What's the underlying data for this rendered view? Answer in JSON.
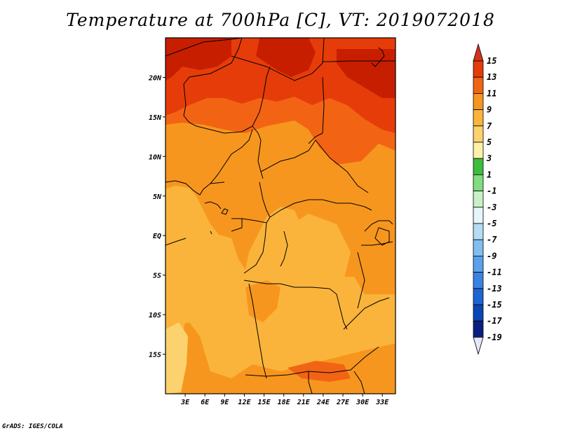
{
  "title": "Temperature at 700hPa [C], VT: 2019072018",
  "credit": "GrADS: IGES/COLA",
  "map": {
    "lon_range": [
      0,
      35
    ],
    "lat_range": [
      -20,
      25
    ],
    "lat_ticks": [
      {
        "lat": 20,
        "label": "20N"
      },
      {
        "lat": 15,
        "label": "15N"
      },
      {
        "lat": 10,
        "label": "10N"
      },
      {
        "lat": 5,
        "label": "5N"
      },
      {
        "lat": 0,
        "label": "EQ"
      },
      {
        "lat": -5,
        "label": "5S"
      },
      {
        "lat": -10,
        "label": "10S"
      },
      {
        "lat": -15,
        "label": "15S"
      }
    ],
    "lon_ticks": [
      {
        "lon": 3,
        "label": "3E"
      },
      {
        "lon": 6,
        "label": "6E"
      },
      {
        "lon": 9,
        "label": "9E"
      },
      {
        "lon": 12,
        "label": "12E"
      },
      {
        "lon": 15,
        "label": "15E"
      },
      {
        "lon": 18,
        "label": "18E"
      },
      {
        "lon": 21,
        "label": "21E"
      },
      {
        "lon": 24,
        "label": "24E"
      },
      {
        "lon": 27,
        "label": "27E"
      },
      {
        "lon": 30,
        "label": "30E"
      },
      {
        "lon": 33,
        "label": "33E"
      }
    ]
  },
  "colorbar": {
    "levels": [
      {
        "label": "15",
        "color": "#c81e00"
      },
      {
        "label": "13",
        "color": "#e63c0a"
      },
      {
        "label": "11",
        "color": "#f26414"
      },
      {
        "label": "9",
        "color": "#f7961e"
      },
      {
        "label": "7",
        "color": "#fab43c"
      },
      {
        "label": "5",
        "color": "#fcd26e"
      },
      {
        "label": "3",
        "color": "#fff0aa"
      },
      {
        "label": "1",
        "color": "#3cbe3c"
      },
      {
        "label": "-1",
        "color": "#82dc82"
      },
      {
        "label": "-3",
        "color": "#c8f0c8"
      },
      {
        "label": "-5",
        "color": "#e6f5fa"
      },
      {
        "label": "-7",
        "color": "#b4dcf5"
      },
      {
        "label": "-9",
        "color": "#82bef0"
      },
      {
        "label": "-11",
        "color": "#5aa0eb"
      },
      {
        "label": "-13",
        "color": "#3c82e1"
      },
      {
        "label": "-15",
        "color": "#1e64d2"
      },
      {
        "label": "-17",
        "color": "#0a46b4"
      },
      {
        "label": "-19",
        "color": "#0a1e82"
      }
    ],
    "top_arrow_color": "#d2321e",
    "bottom_arrow_color": "#e6e6fa"
  }
}
